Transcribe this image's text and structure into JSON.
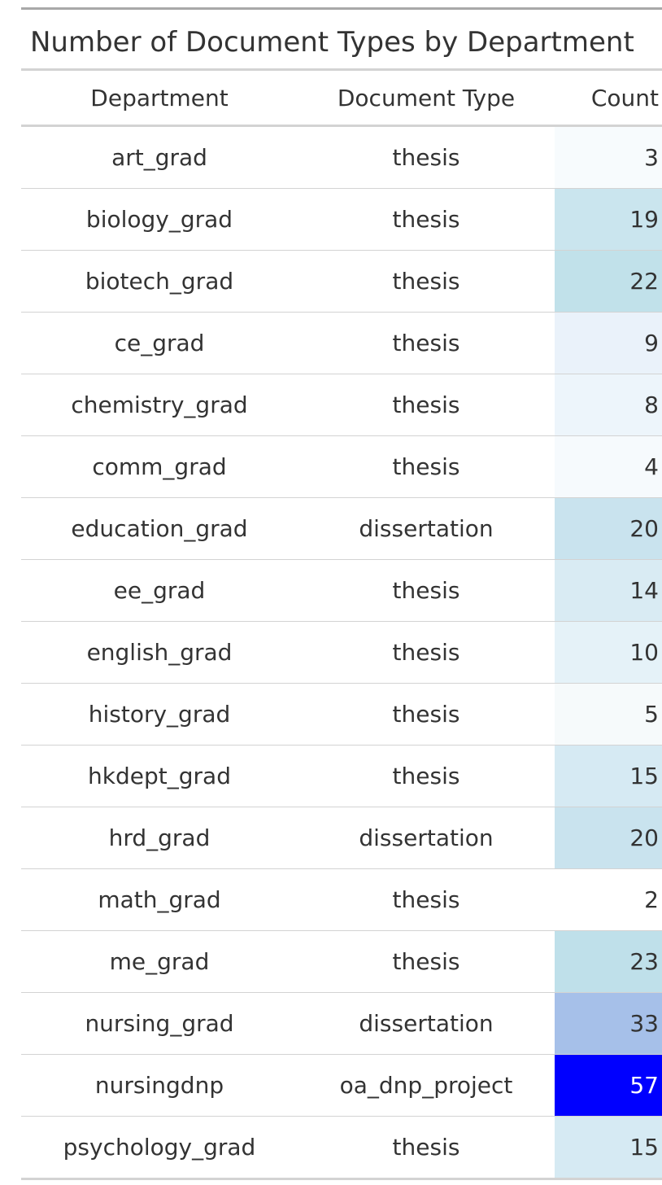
{
  "table": {
    "title": "Number of Document Types by Department",
    "headers": {
      "department": "Department",
      "doc_type": "Document Type",
      "count": "Count"
    },
    "rows": [
      {
        "department": "art_grad",
        "doc_type": "thesis",
        "count": "3",
        "bg": "#f7fbfd",
        "fg": "#333333"
      },
      {
        "department": "biology_grad",
        "doc_type": "thesis",
        "count": "19",
        "bg": "#cae5ee",
        "fg": "#333333"
      },
      {
        "department": "biotech_grad",
        "doc_type": "thesis",
        "count": "22",
        "bg": "#c1e1ea",
        "fg": "#333333"
      },
      {
        "department": "ce_grad",
        "doc_type": "thesis",
        "count": "9",
        "bg": "#eaf2fa",
        "fg": "#333333"
      },
      {
        "department": "chemistry_grad",
        "doc_type": "thesis",
        "count": "8",
        "bg": "#edf5fb",
        "fg": "#333333"
      },
      {
        "department": "comm_grad",
        "doc_type": "thesis",
        "count": "4",
        "bg": "#f6fafd",
        "fg": "#333333"
      },
      {
        "department": "education_grad",
        "doc_type": "dissertation",
        "count": "20",
        "bg": "#c9e3ee",
        "fg": "#333333"
      },
      {
        "department": "ee_grad",
        "doc_type": "thesis",
        "count": "14",
        "bg": "#d9ebf3",
        "fg": "#333333"
      },
      {
        "department": "english_grad",
        "doc_type": "thesis",
        "count": "10",
        "bg": "#e5f2f8",
        "fg": "#333333"
      },
      {
        "department": "history_grad",
        "doc_type": "thesis",
        "count": "5",
        "bg": "#f6fafb",
        "fg": "#333333"
      },
      {
        "department": "hkdept_grad",
        "doc_type": "thesis",
        "count": "15",
        "bg": "#d6eaf3",
        "fg": "#333333"
      },
      {
        "department": "hrd_grad",
        "doc_type": "dissertation",
        "count": "20",
        "bg": "#c9e3ee",
        "fg": "#333333"
      },
      {
        "department": "math_grad",
        "doc_type": "thesis",
        "count": "2",
        "bg": "#ffffff",
        "fg": "#333333"
      },
      {
        "department": "me_grad",
        "doc_type": "thesis",
        "count": "23",
        "bg": "#bfe0ea",
        "fg": "#333333"
      },
      {
        "department": "nursing_grad",
        "doc_type": "dissertation",
        "count": "33",
        "bg": "#a6c0e9",
        "fg": "#333333"
      },
      {
        "department": "nursingdnp",
        "doc_type": "oa_dnp_project",
        "count": "57",
        "bg": "#0000ff",
        "fg": "#ffffff"
      },
      {
        "department": "psychology_grad",
        "doc_type": "thesis",
        "count": "15",
        "bg": "#d6eaf3",
        "fg": "#333333"
      }
    ]
  }
}
